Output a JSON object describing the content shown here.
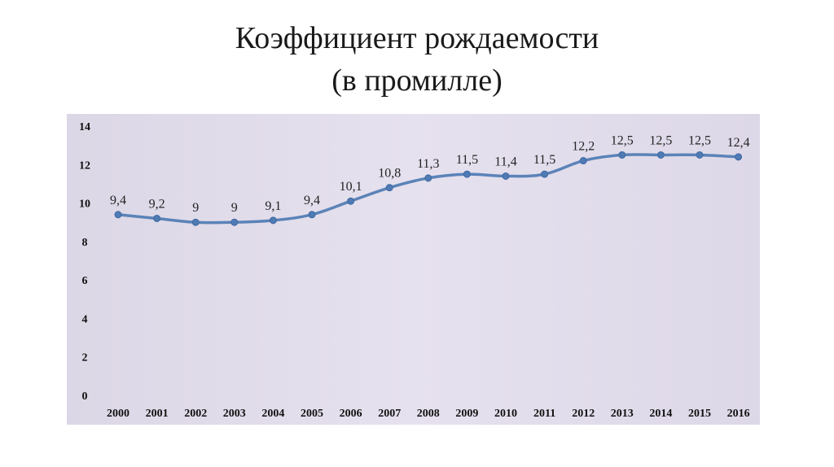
{
  "title": {
    "line1": "Коэффициент рождаемости",
    "line2": "(в промилле)"
  },
  "colors": {
    "line": "#5b83b8",
    "marker": "#4f7ab4",
    "plot_bg": "#e2ddeb"
  },
  "chart_data": {
    "type": "line",
    "title": "Коэффициент рождаемости (в промилле)",
    "xlabel": "",
    "ylabel": "",
    "categories": [
      "2000",
      "2001",
      "2002",
      "2003",
      "2004",
      "2005",
      "2006",
      "2007",
      "2008",
      "2009",
      "2010",
      "2011",
      "2012",
      "2013",
      "2014",
      "2015",
      "2016"
    ],
    "series": [
      {
        "values": [
          9.4,
          9.2,
          9,
          9,
          9.1,
          9.4,
          10.1,
          10.8,
          11.3,
          11.5,
          11.4,
          11.5,
          12.2,
          12.5,
          12.5,
          12.5,
          12.4
        ],
        "labels": [
          "9,4",
          "9,2",
          "9",
          "9",
          "9,1",
          "9,4",
          "10,1",
          "10,8",
          "11,3",
          "11,5",
          "11,4",
          "11,5",
          "12,2",
          "12,5",
          "12,5",
          "12,5",
          "12,4"
        ]
      }
    ],
    "ylim": [
      0,
      14
    ],
    "yticks": [
      "0",
      "2",
      "4",
      "6",
      "8",
      "10",
      "12",
      "14"
    ],
    "grid": false,
    "legend": "none"
  }
}
